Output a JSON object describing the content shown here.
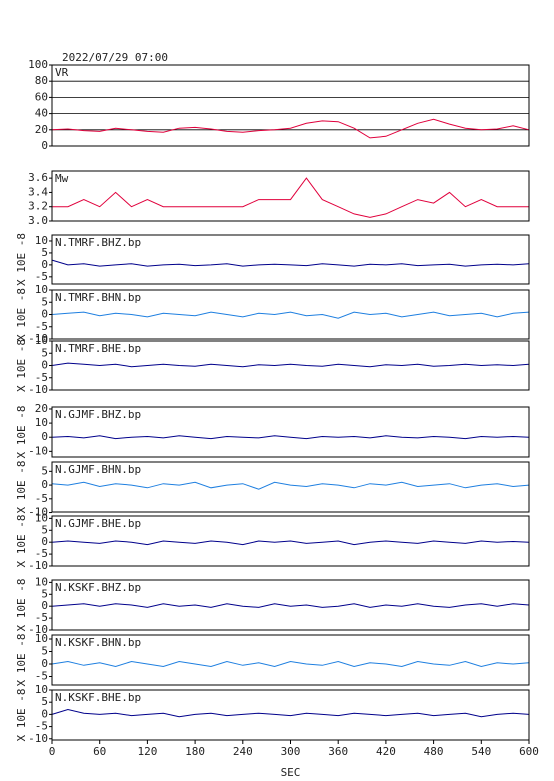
{
  "chart_data": [
    {
      "type": "line",
      "title": "2022/07/29 07:00",
      "label": "VR",
      "color": "#e0003c",
      "grid": true,
      "x": [
        0,
        20,
        40,
        60,
        80,
        100,
        120,
        140,
        160,
        180,
        200,
        220,
        240,
        260,
        280,
        300,
        320,
        340,
        360,
        380,
        400,
        420,
        440,
        460,
        480,
        500,
        520,
        540,
        560,
        580,
        600
      ],
      "values": [
        20,
        21,
        19,
        18,
        22,
        20,
        18,
        17,
        22,
        23,
        21,
        18,
        17,
        19,
        20,
        22,
        28,
        31,
        30,
        22,
        10,
        12,
        20,
        28,
        33,
        27,
        22,
        20,
        21,
        25,
        20
      ],
      "xlim": [
        0,
        600
      ],
      "ylim": [
        0,
        100
      ],
      "yticks": [
        0,
        20,
        40,
        60,
        80,
        100
      ]
    },
    {
      "type": "line",
      "label": "Mw",
      "color": "#e0003c",
      "x": [
        0,
        20,
        40,
        60,
        80,
        100,
        120,
        140,
        160,
        180,
        200,
        220,
        240,
        260,
        280,
        300,
        320,
        340,
        360,
        380,
        400,
        420,
        440,
        460,
        480,
        500,
        520,
        540,
        560,
        580,
        600
      ],
      "values": [
        3.2,
        3.2,
        3.3,
        3.2,
        3.4,
        3.2,
        3.3,
        3.2,
        3.2,
        3.2,
        3.2,
        3.2,
        3.2,
        3.3,
        3.3,
        3.3,
        3.6,
        3.3,
        3.2,
        3.1,
        3.05,
        3.1,
        3.2,
        3.3,
        3.25,
        3.4,
        3.2,
        3.3,
        3.2,
        3.2,
        3.2
      ],
      "xlim": [
        0,
        600
      ],
      "ylim": [
        3.0,
        3.7
      ],
      "yticks": [
        {
          "value": 3.0,
          "label": "3.0"
        },
        3.2,
        3.4,
        3.6
      ]
    },
    {
      "type": "line",
      "label": "N.TMRF.BHZ.bp",
      "y_label": "X 10E -8",
      "color": "#00008b",
      "x": [
        0,
        20,
        40,
        60,
        80,
        100,
        120,
        140,
        160,
        180,
        200,
        220,
        240,
        260,
        280,
        300,
        320,
        340,
        360,
        380,
        400,
        420,
        440,
        460,
        480,
        500,
        520,
        540,
        560,
        580,
        600
      ],
      "values": [
        2,
        0,
        0.5,
        -0.5,
        0,
        0.5,
        -0.5,
        0,
        0.3,
        -0.3,
        0,
        0.5,
        -0.5,
        0,
        0.3,
        0,
        -0.3,
        0.5,
        0,
        -0.5,
        0.3,
        0,
        0.5,
        -0.3,
        0,
        0.3,
        -0.5,
        0,
        0.3,
        0,
        0.5
      ],
      "xlim": [
        0,
        600
      ],
      "ylim": [
        -8,
        12.5
      ],
      "yticks": [
        10,
        5,
        0,
        -5
      ]
    },
    {
      "type": "line",
      "label": "N.TMRF.BHN.bp",
      "y_label": "X 10E -8",
      "color": "#1e7fe0",
      "x": [
        0,
        20,
        40,
        60,
        80,
        100,
        120,
        140,
        160,
        180,
        200,
        220,
        240,
        260,
        280,
        300,
        320,
        340,
        360,
        380,
        400,
        420,
        440,
        460,
        480,
        500,
        520,
        540,
        560,
        580,
        600
      ],
      "values": [
        0,
        0.5,
        1,
        -0.5,
        0.5,
        0,
        -1,
        0.5,
        0,
        -0.5,
        1,
        0,
        -1,
        0.5,
        0,
        1,
        -0.5,
        0,
        -1.5,
        1,
        0,
        0.5,
        -1,
        0,
        1,
        -0.5,
        0,
        0.5,
        -1,
        0.5,
        1
      ],
      "xlim": [
        0,
        600
      ],
      "ylim": [
        -10,
        10
      ],
      "yticks": [
        10,
        5,
        0,
        -5,
        -10
      ]
    },
    {
      "type": "line",
      "label": "N.TMRF.BHE.bp",
      "y_label": "X 10E -8",
      "color": "#00008b",
      "x": [
        0,
        20,
        40,
        60,
        80,
        100,
        120,
        140,
        160,
        180,
        200,
        220,
        240,
        260,
        280,
        300,
        320,
        340,
        360,
        380,
        400,
        420,
        440,
        460,
        480,
        500,
        520,
        540,
        560,
        580,
        600
      ],
      "values": [
        0,
        1,
        0.5,
        0,
        0.5,
        -0.5,
        0,
        0.5,
        0,
        -0.3,
        0.5,
        0,
        -0.5,
        0.3,
        0,
        0.5,
        0,
        -0.3,
        0.5,
        0,
        -0.5,
        0.3,
        0,
        0.5,
        -0.3,
        0,
        0.5,
        0,
        0.3,
        0,
        0.5
      ],
      "xlim": [
        0,
        600
      ],
      "ylim": [
        -10,
        10
      ],
      "yticks": [
        10,
        5,
        0,
        -5,
        -10
      ]
    },
    {
      "type": "line",
      "label": "N.GJMF.BHZ.bp",
      "y_label": "X 10E -8",
      "color": "#00008b",
      "x": [
        0,
        20,
        40,
        60,
        80,
        100,
        120,
        140,
        160,
        180,
        200,
        220,
        240,
        260,
        280,
        300,
        320,
        340,
        360,
        380,
        400,
        420,
        440,
        460,
        480,
        500,
        520,
        540,
        560,
        580,
        600
      ],
      "values": [
        0,
        0.5,
        -0.5,
        1,
        -1,
        0,
        0.5,
        -0.5,
        1,
        0,
        -1,
        0.5,
        0,
        -0.5,
        1,
        0,
        -1,
        0.5,
        0,
        0.5,
        -0.5,
        1,
        0,
        -0.5,
        0.5,
        0,
        -1,
        0.5,
        0,
        0.5,
        0
      ],
      "xlim": [
        0,
        600
      ],
      "ylim": [
        -14,
        21.4
      ],
      "yticks": [
        20,
        10,
        0,
        -10
      ]
    },
    {
      "type": "line",
      "label": "N.GJMF.BHN.bp",
      "y_label": "X 10E -8",
      "color": "#1e7fe0",
      "x": [
        0,
        20,
        40,
        60,
        80,
        100,
        120,
        140,
        160,
        180,
        200,
        220,
        240,
        260,
        280,
        300,
        320,
        340,
        360,
        380,
        400,
        420,
        440,
        460,
        480,
        500,
        520,
        540,
        560,
        580,
        600
      ],
      "values": [
        0.5,
        0,
        1,
        -0.5,
        0.5,
        0,
        -1,
        0.5,
        0,
        1,
        -1,
        0,
        0.5,
        -1.5,
        1,
        0,
        -0.5,
        0.5,
        0,
        -1,
        0.5,
        0,
        1,
        -0.5,
        0,
        0.5,
        -1,
        0,
        0.5,
        -0.5,
        0
      ],
      "xlim": [
        0,
        600
      ],
      "ylim": [
        -9.8,
        8.4
      ],
      "yticks": [
        5,
        0,
        -5,
        -10
      ]
    },
    {
      "type": "line",
      "label": "N.GJMF.BHE.bp",
      "y_label": "X 10E -8",
      "color": "#00008b",
      "x": [
        0,
        20,
        40,
        60,
        80,
        100,
        120,
        140,
        160,
        180,
        200,
        220,
        240,
        260,
        280,
        300,
        320,
        340,
        360,
        380,
        400,
        420,
        440,
        460,
        480,
        500,
        520,
        540,
        560,
        580,
        600
      ],
      "values": [
        0,
        0.5,
        0,
        -0.5,
        0.5,
        0,
        -1,
        0.5,
        0,
        -0.5,
        0.5,
        0,
        -1,
        0.5,
        0,
        0.5,
        -0.5,
        0,
        0.5,
        -1,
        0,
        0.5,
        0,
        -0.5,
        0.5,
        0,
        -0.5,
        0.5,
        0,
        0.3,
        0
      ],
      "xlim": [
        0,
        600
      ],
      "ylim": [
        -10,
        11
      ],
      "yticks": [
        10,
        5,
        0,
        -5,
        -10
      ]
    },
    {
      "type": "line",
      "label": "N.KSKF.BHZ.bp",
      "y_label": "X 10E -8",
      "color": "#00008b",
      "x": [
        0,
        20,
        40,
        60,
        80,
        100,
        120,
        140,
        160,
        180,
        200,
        220,
        240,
        260,
        280,
        300,
        320,
        340,
        360,
        380,
        400,
        420,
        440,
        460,
        480,
        500,
        520,
        540,
        560,
        580,
        600
      ],
      "values": [
        0,
        0.5,
        1,
        0,
        1,
        0.5,
        -0.5,
        1,
        0,
        0.5,
        -0.5,
        1,
        0,
        -0.5,
        1,
        0,
        0.5,
        -0.5,
        0,
        1,
        -0.5,
        0.5,
        0,
        1,
        0,
        -0.5,
        0.5,
        1,
        0,
        1,
        0.5
      ],
      "xlim": [
        0,
        600
      ],
      "ylim": [
        -10,
        11
      ],
      "yticks": [
        10,
        5,
        0,
        -5,
        -10
      ]
    },
    {
      "type": "line",
      "label": "N.KSKF.BHN.bp",
      "y_label": "X 10E -8",
      "color": "#1e7fe0",
      "x": [
        0,
        20,
        40,
        60,
        80,
        100,
        120,
        140,
        160,
        180,
        200,
        220,
        240,
        260,
        280,
        300,
        320,
        340,
        360,
        380,
        400,
        420,
        440,
        460,
        480,
        500,
        520,
        540,
        560,
        580,
        600
      ],
      "values": [
        0,
        1,
        -0.5,
        0.5,
        -1,
        1,
        0,
        -1,
        1,
        0,
        -1,
        1,
        -0.5,
        0.5,
        -1,
        1,
        0,
        -0.5,
        1,
        -1,
        0.5,
        0,
        -1,
        1,
        0,
        -0.5,
        1,
        -1,
        0.5,
        0,
        0.5
      ],
      "xlim": [
        0,
        600
      ],
      "ylim": [
        -8.4,
        11.6
      ],
      "yticks": [
        10,
        5,
        0,
        -5
      ]
    },
    {
      "type": "line",
      "label": "N.KSKF.BHE.bp",
      "y_label": "X 10E -8",
      "color": "#00008b",
      "x_label": "SEC",
      "x": [
        0,
        20,
        40,
        60,
        80,
        100,
        120,
        140,
        160,
        180,
        200,
        220,
        240,
        260,
        280,
        300,
        320,
        340,
        360,
        380,
        400,
        420,
        440,
        460,
        480,
        500,
        520,
        540,
        560,
        580,
        600
      ],
      "values": [
        0,
        2,
        0.5,
        0,
        0.5,
        -0.5,
        0,
        0.5,
        -1,
        0,
        0.5,
        -0.5,
        0,
        0.5,
        0,
        -0.5,
        0.5,
        0,
        -0.5,
        0.5,
        0,
        -0.5,
        0,
        0.5,
        -0.5,
        0,
        0.5,
        -1,
        0,
        0.5,
        0
      ],
      "xlim": [
        0,
        600
      ],
      "ylim": [
        -10.5,
        10
      ],
      "yticks": [
        10,
        5,
        0,
        -5,
        -10
      ],
      "xticks": [
        0,
        60,
        120,
        180,
        240,
        300,
        360,
        420,
        480,
        540,
        600
      ]
    }
  ]
}
